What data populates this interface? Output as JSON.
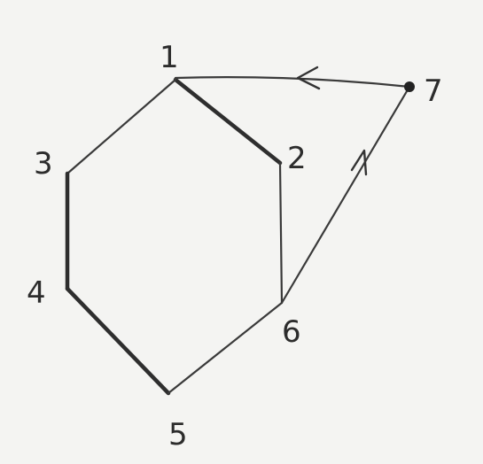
{
  "graph": {
    "nodes": [
      {
        "id": "1",
        "label": "1"
      },
      {
        "id": "2",
        "label": "2"
      },
      {
        "id": "3",
        "label": "3"
      },
      {
        "id": "4",
        "label": "4"
      },
      {
        "id": "5",
        "label": "5"
      },
      {
        "id": "6",
        "label": "6"
      },
      {
        "id": "7",
        "label": "7"
      }
    ],
    "edges": [
      {
        "from": "1",
        "to": "2",
        "directed": false,
        "emphasis": "thick"
      },
      {
        "from": "1",
        "to": "3",
        "directed": false,
        "emphasis": "thin"
      },
      {
        "from": "3",
        "to": "4",
        "directed": false,
        "emphasis": "thick"
      },
      {
        "from": "4",
        "to": "5",
        "directed": false,
        "emphasis": "thick"
      },
      {
        "from": "5",
        "to": "6",
        "directed": false,
        "emphasis": "thin"
      },
      {
        "from": "2",
        "to": "6",
        "directed": false,
        "emphasis": "thin"
      },
      {
        "from": "6",
        "to": "7",
        "directed": true,
        "emphasis": "thin"
      },
      {
        "from": "7",
        "to": "1",
        "directed": true,
        "emphasis": "thin"
      }
    ]
  }
}
